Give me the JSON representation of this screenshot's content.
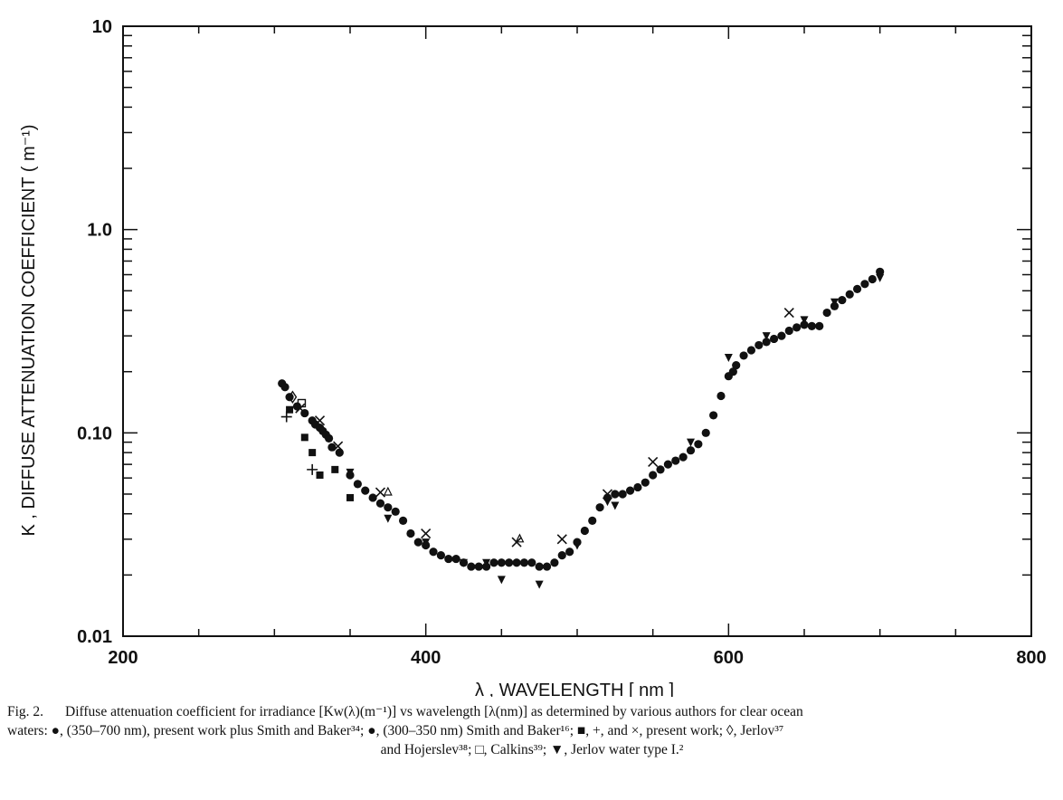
{
  "chart_data": {
    "type": "scatter",
    "title": "",
    "xlabel": "λ , WAVELENGTH [ nm ]",
    "ylabel": "K , DIFFUSE ATTENUATION COEFFICIENT ( m⁻¹)",
    "xlim": [
      200,
      800
    ],
    "ylim": [
      0.01,
      10
    ],
    "y_scale": "log",
    "grid": false,
    "x_ticks": [
      200,
      400,
      600,
      800
    ],
    "x_tick_labels": [
      "200",
      "400",
      "600",
      "800"
    ],
    "y_ticks": [
      0.01,
      0.1,
      1,
      10
    ],
    "y_tick_labels": [
      "0.01",
      "0.10",
      "1.0",
      "10"
    ],
    "series": [
      {
        "marker": "filled-circle",
        "x": [
          305,
          307,
          310,
          315,
          320,
          325,
          327,
          330,
          332,
          334,
          336,
          338,
          343,
          350,
          355,
          360,
          365,
          370,
          375,
          380,
          385,
          390,
          395,
          400,
          405,
          410,
          415,
          420,
          425,
          430,
          435,
          440,
          445,
          450,
          455,
          460,
          465,
          470,
          475,
          480,
          485,
          490,
          495,
          500,
          505,
          510,
          515,
          520,
          525,
          530,
          535,
          540,
          545,
          550,
          555,
          560,
          565,
          570,
          575,
          580,
          585,
          590,
          595,
          600,
          603,
          605,
          610,
          615,
          620,
          625,
          630,
          635,
          640,
          645,
          650,
          655,
          660,
          665,
          670,
          675,
          680,
          685,
          690,
          695,
          700
        ],
        "y": [
          0.175,
          0.168,
          0.15,
          0.135,
          0.125,
          0.115,
          0.11,
          0.106,
          0.102,
          0.098,
          0.094,
          0.085,
          0.08,
          0.062,
          0.056,
          0.052,
          0.048,
          0.045,
          0.043,
          0.041,
          0.037,
          0.032,
          0.029,
          0.028,
          0.026,
          0.025,
          0.024,
          0.024,
          0.023,
          0.022,
          0.022,
          0.022,
          0.023,
          0.023,
          0.023,
          0.023,
          0.023,
          0.023,
          0.022,
          0.022,
          0.023,
          0.025,
          0.026,
          0.029,
          0.033,
          0.037,
          0.043,
          0.048,
          0.05,
          0.05,
          0.052,
          0.054,
          0.057,
          0.062,
          0.066,
          0.07,
          0.073,
          0.076,
          0.082,
          0.088,
          0.1,
          0.122,
          0.152,
          0.19,
          0.2,
          0.215,
          0.24,
          0.255,
          0.27,
          0.28,
          0.29,
          0.3,
          0.318,
          0.33,
          0.34,
          0.335,
          0.335,
          0.39,
          0.42,
          0.45,
          0.48,
          0.51,
          0.54,
          0.57,
          0.62
        ]
      },
      {
        "marker": "filled-square",
        "x": [
          310,
          320,
          325,
          330,
          340,
          350
        ],
        "y": [
          0.13,
          0.095,
          0.08,
          0.062,
          0.066,
          0.048
        ]
      },
      {
        "marker": "plus",
        "x": [
          308,
          325
        ],
        "y": [
          0.12,
          0.066
        ]
      },
      {
        "marker": "cross",
        "x": [
          317,
          330,
          342,
          370,
          400,
          460,
          490,
          520,
          550,
          640
        ],
        "y": [
          0.132,
          0.115,
          0.086,
          0.051,
          0.032,
          0.029,
          0.03,
          0.05,
          0.072,
          0.39
        ]
      },
      {
        "marker": "open-diamond",
        "x": [
          312
        ],
        "y": [
          0.15
        ]
      },
      {
        "marker": "open-square",
        "x": [
          318
        ],
        "y": [
          0.14
        ]
      },
      {
        "marker": "open-triangle",
        "x": [
          375,
          462
        ],
        "y": [
          0.051,
          0.03
        ]
      },
      {
        "marker": "filled-triangle-down",
        "x": [
          350,
          375,
          400,
          425,
          440,
          450,
          475,
          500,
          520,
          525,
          575,
          600,
          625,
          650,
          670,
          700
        ],
        "y": [
          0.064,
          0.038,
          0.029,
          0.023,
          0.023,
          0.019,
          0.018,
          0.028,
          0.046,
          0.044,
          0.09,
          0.235,
          0.3,
          0.36,
          0.44,
          0.58
        ]
      }
    ]
  },
  "caption": {
    "label": "Fig. 2.",
    "line1": "Diffuse attenuation coefficient for irradiance [Kw(λ)(m⁻¹)] vs wavelength [λ(nm)] as determined by various authors for clear ocean",
    "line2": "waters: ●, (350–700 nm), present work plus Smith and Baker³⁴; ●, (300–350 nm) Smith and Baker¹⁶; ■, +, and ×, present work; ◊, Jerlov³⁷",
    "line3": "and Hojerslev³⁸; □, Calkins³⁹; ▼, Jerlov water type I.²"
  }
}
